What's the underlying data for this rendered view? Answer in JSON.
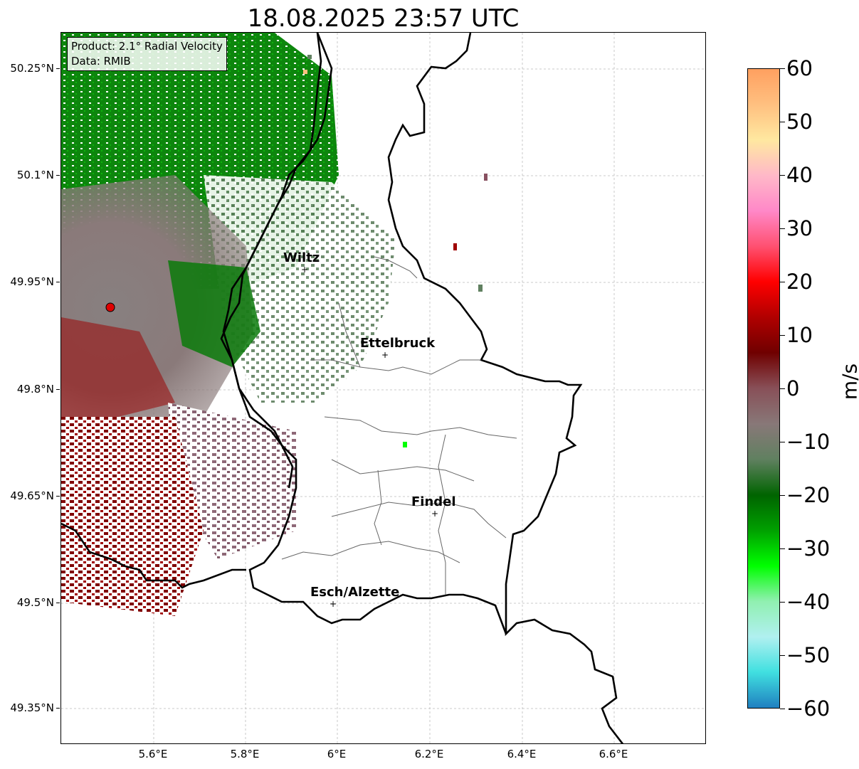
{
  "title": "18.08.2025 23:57 UTC",
  "info_box": {
    "product": "Product: 2.1° Radial Velocity",
    "source": "Data: RMIB"
  },
  "axes": {
    "lat_ticks": [
      "50.25°N",
      "50.1°N",
      "49.95°N",
      "49.8°N",
      "49.65°N",
      "49.5°N",
      "49.35°N"
    ],
    "lon_ticks": [
      "5.6°E",
      "5.8°E",
      "6°E",
      "6.2°E",
      "6.4°E",
      "6.6°E"
    ],
    "grid": true
  },
  "colorbar": {
    "label": "m/s",
    "ticks": [
      "60",
      "50",
      "40",
      "30",
      "20",
      "10",
      "0",
      "−10",
      "−20",
      "−30",
      "−40",
      "−50",
      "−60"
    ],
    "range": [
      -60,
      60
    ],
    "colors_top_to_bottom": [
      "#ffa060",
      "#ffc080",
      "#ffe8a0",
      "#ffb8c8",
      "#ff88c8",
      "#ff5070",
      "#ff0000",
      "#b00000",
      "#700000",
      "#885058",
      "#887878",
      "#608060",
      "#006400",
      "#00a000",
      "#00ff00",
      "#90f0b0",
      "#b0f0f0",
      "#40e0e0",
      "#2080c0"
    ]
  },
  "cities": [
    {
      "name": "Wiltz"
    },
    {
      "name": "Ettelbruck"
    },
    {
      "name": "Findel"
    },
    {
      "name": "Esch/Alzette"
    }
  ],
  "radar_site_color": "#e00000"
}
